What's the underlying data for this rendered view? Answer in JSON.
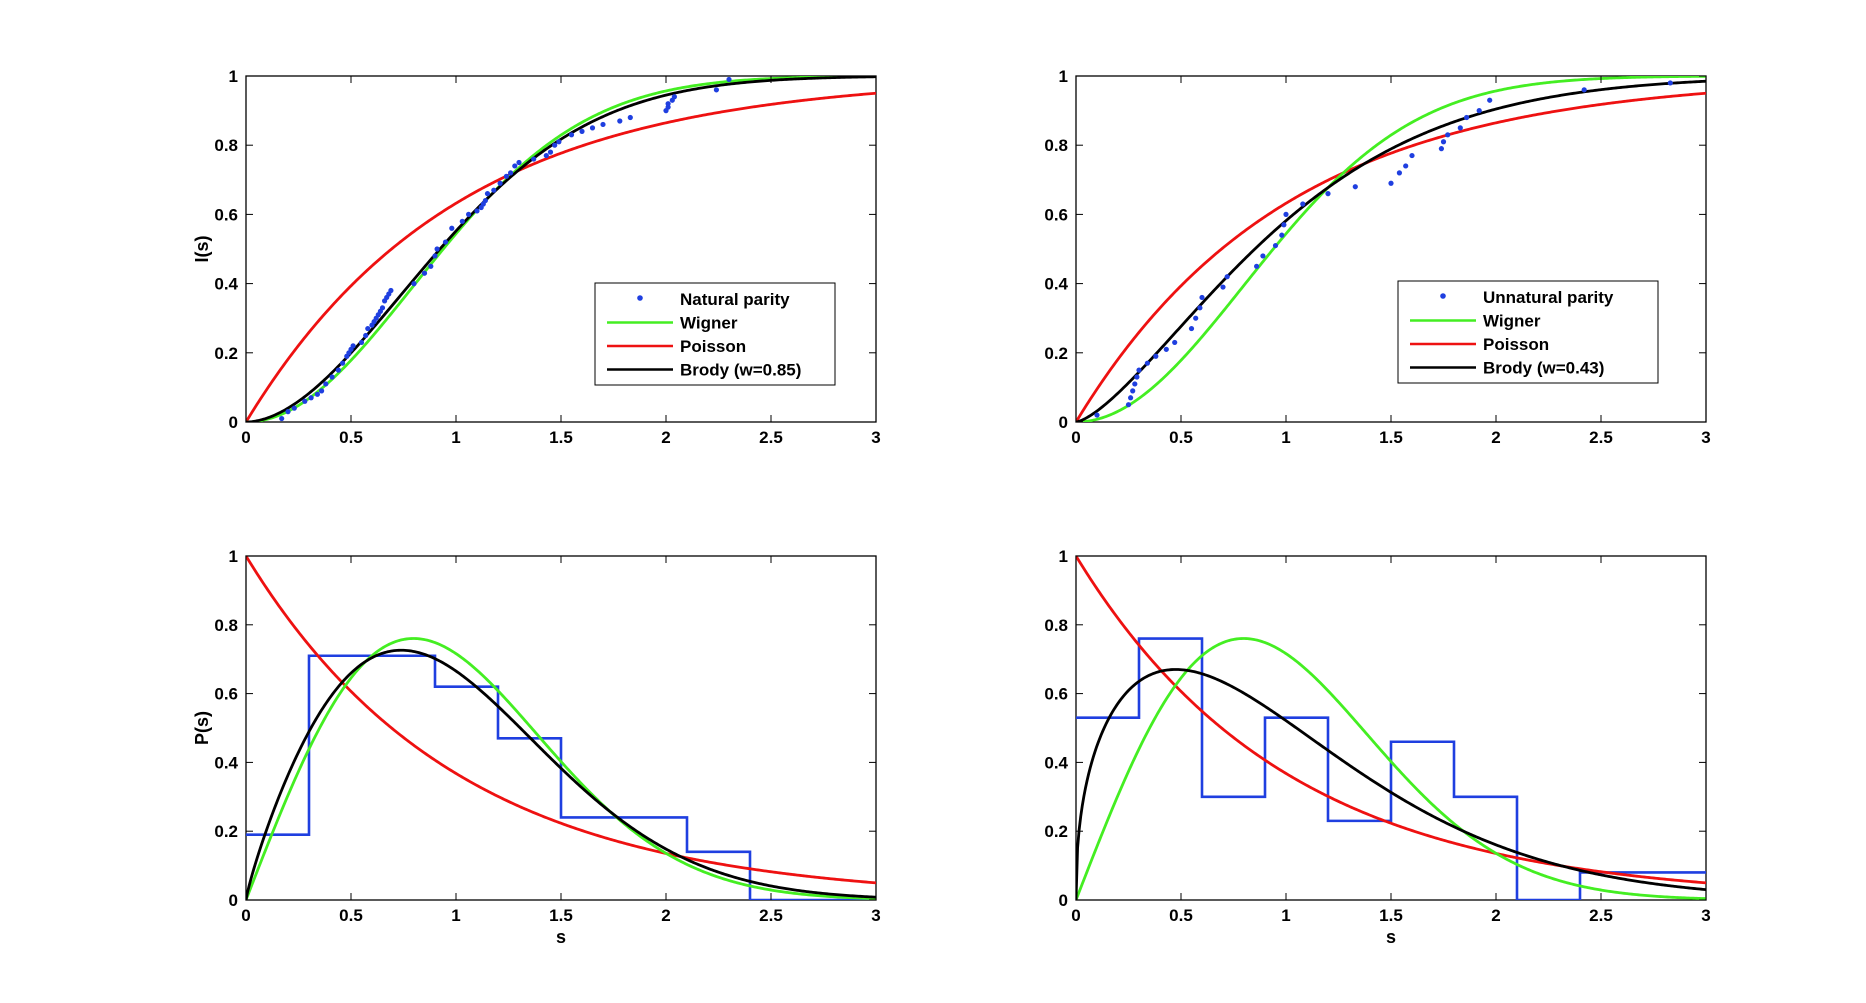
{
  "chart_data": [
    {
      "type": "line",
      "id": "tl",
      "xlabel": "",
      "ylabel": "I(s)",
      "xlim": [
        0,
        3
      ],
      "ylim": [
        0,
        1
      ],
      "xticks": [
        "0",
        "0.5",
        "1",
        "1.5",
        "2",
        "2.5",
        "3"
      ],
      "yticks": [
        "0",
        "0.2",
        "0.4",
        "0.6",
        "0.8",
        "1"
      ],
      "legend": [
        "Natural parity",
        "Wigner",
        "Poisson",
        "Brody (w=0.85)"
      ],
      "legend_position": "lower-right",
      "colors": {
        "data": "#1f3fe0",
        "wigner": "#44ee22",
        "poisson": "#ee1111",
        "brody": "#000000"
      },
      "curves": {
        "wigner": "cumulative",
        "poisson": "cumulative",
        "brody": "cumulative",
        "brody_w": 0.85
      },
      "points": {
        "x": [
          0.17,
          0.2,
          0.23,
          0.28,
          0.31,
          0.34,
          0.36,
          0.38,
          0.41,
          0.44,
          0.46,
          0.48,
          0.49,
          0.5,
          0.51,
          0.55,
          0.57,
          0.58,
          0.6,
          0.61,
          0.62,
          0.63,
          0.64,
          0.65,
          0.66,
          0.67,
          0.68,
          0.69,
          0.8,
          0.85,
          0.88,
          0.9,
          0.91,
          0.95,
          0.98,
          1.03,
          1.06,
          1.1,
          1.12,
          1.13,
          1.14,
          1.15,
          1.18,
          1.21,
          1.24,
          1.26,
          1.28,
          1.3,
          1.37,
          1.43,
          1.45,
          1.47,
          1.49,
          1.55,
          1.6,
          1.65,
          1.7,
          1.78,
          1.83,
          2.0,
          2.01,
          2.01,
          2.03,
          2.04,
          2.24,
          2.3
        ],
        "y": [
          0.01,
          0.03,
          0.04,
          0.06,
          0.07,
          0.08,
          0.09,
          0.11,
          0.13,
          0.15,
          0.17,
          0.19,
          0.2,
          0.21,
          0.22,
          0.23,
          0.25,
          0.27,
          0.28,
          0.29,
          0.3,
          0.31,
          0.32,
          0.33,
          0.35,
          0.36,
          0.37,
          0.38,
          0.4,
          0.43,
          0.45,
          0.48,
          0.5,
          0.52,
          0.56,
          0.58,
          0.6,
          0.61,
          0.62,
          0.63,
          0.64,
          0.66,
          0.67,
          0.69,
          0.71,
          0.72,
          0.74,
          0.75,
          0.76,
          0.77,
          0.78,
          0.8,
          0.81,
          0.83,
          0.84,
          0.85,
          0.86,
          0.87,
          0.88,
          0.9,
          0.91,
          0.92,
          0.93,
          0.94,
          0.96,
          0.99
        ]
      }
    },
    {
      "type": "line",
      "id": "tr",
      "xlabel": "",
      "ylabel": "",
      "xlim": [
        0,
        3
      ],
      "ylim": [
        0,
        1
      ],
      "xticks": [
        "0",
        "0.5",
        "1",
        "1.5",
        "2",
        "2.5",
        "3"
      ],
      "yticks": [
        "0",
        "0.2",
        "0.4",
        "0.6",
        "0.8",
        "1"
      ],
      "legend": [
        "Unnatural parity",
        "Wigner",
        "Poisson",
        "Brody (w=0.43)"
      ],
      "legend_position": "lower-right",
      "colors": {
        "data": "#1f3fe0",
        "wigner": "#44ee22",
        "poisson": "#ee1111",
        "brody": "#000000"
      },
      "curves": {
        "wigner": "cumulative",
        "poisson": "cumulative",
        "brody": "cumulative",
        "brody_w": 0.43
      },
      "points": {
        "x": [
          0.1,
          0.25,
          0.26,
          0.27,
          0.28,
          0.29,
          0.3,
          0.34,
          0.38,
          0.43,
          0.47,
          0.55,
          0.57,
          0.59,
          0.6,
          0.7,
          0.72,
          0.86,
          0.89,
          0.95,
          0.98,
          0.99,
          1.0,
          1.08,
          1.2,
          1.33,
          1.5,
          1.54,
          1.57,
          1.6,
          1.74,
          1.75,
          1.77,
          1.83,
          1.86,
          1.92,
          1.97,
          2.42,
          2.83
        ],
        "y": [
          0.02,
          0.05,
          0.07,
          0.09,
          0.11,
          0.13,
          0.15,
          0.17,
          0.19,
          0.21,
          0.23,
          0.27,
          0.3,
          0.33,
          0.36,
          0.39,
          0.42,
          0.45,
          0.48,
          0.51,
          0.54,
          0.57,
          0.6,
          0.63,
          0.66,
          0.68,
          0.69,
          0.72,
          0.74,
          0.77,
          0.79,
          0.81,
          0.83,
          0.85,
          0.88,
          0.9,
          0.93,
          0.96,
          0.98
        ]
      }
    },
    {
      "type": "line",
      "id": "bl",
      "xlabel": "s",
      "ylabel": "P(s)",
      "xlim": [
        0,
        3
      ],
      "ylim": [
        0,
        1
      ],
      "xticks": [
        "0",
        "0.5",
        "1",
        "1.5",
        "2",
        "2.5",
        "3"
      ],
      "yticks": [
        "0",
        "0.2",
        "0.4",
        "0.6",
        "0.8",
        "1"
      ],
      "colors": {
        "histogram": "#1f3fe0",
        "wigner": "#44ee22",
        "poisson": "#ee1111",
        "brody": "#000000"
      },
      "curves": {
        "wigner": "density",
        "poisson": "density",
        "brody": "density",
        "brody_w": 0.85
      },
      "histogram": {
        "edges": [
          0,
          0.3,
          0.6,
          0.9,
          1.2,
          1.5,
          1.8,
          2.1,
          2.4,
          2.7,
          3.0
        ],
        "values": [
          0.19,
          0.71,
          0.71,
          0.62,
          0.47,
          0.24,
          0.24,
          0.14,
          0.0,
          0.0
        ]
      }
    },
    {
      "type": "line",
      "id": "br",
      "xlabel": "s",
      "ylabel": "",
      "xlim": [
        0,
        3
      ],
      "ylim": [
        0,
        1
      ],
      "xticks": [
        "0",
        "0.5",
        "1",
        "1.5",
        "2",
        "2.5",
        "3"
      ],
      "yticks": [
        "0",
        "0.2",
        "0.4",
        "0.6",
        "0.8",
        "1"
      ],
      "colors": {
        "histogram": "#1f3fe0",
        "wigner": "#44ee22",
        "poisson": "#ee1111",
        "brody": "#000000"
      },
      "curves": {
        "wigner": "density",
        "poisson": "density",
        "brody": "density",
        "brody_w": 0.43
      },
      "histogram": {
        "edges": [
          0,
          0.3,
          0.6,
          0.9,
          1.2,
          1.5,
          1.8,
          2.1,
          2.4,
          2.7,
          3.0
        ],
        "values": [
          0.53,
          0.76,
          0.3,
          0.53,
          0.23,
          0.46,
          0.3,
          0.0,
          0.08,
          0.08
        ]
      }
    }
  ]
}
